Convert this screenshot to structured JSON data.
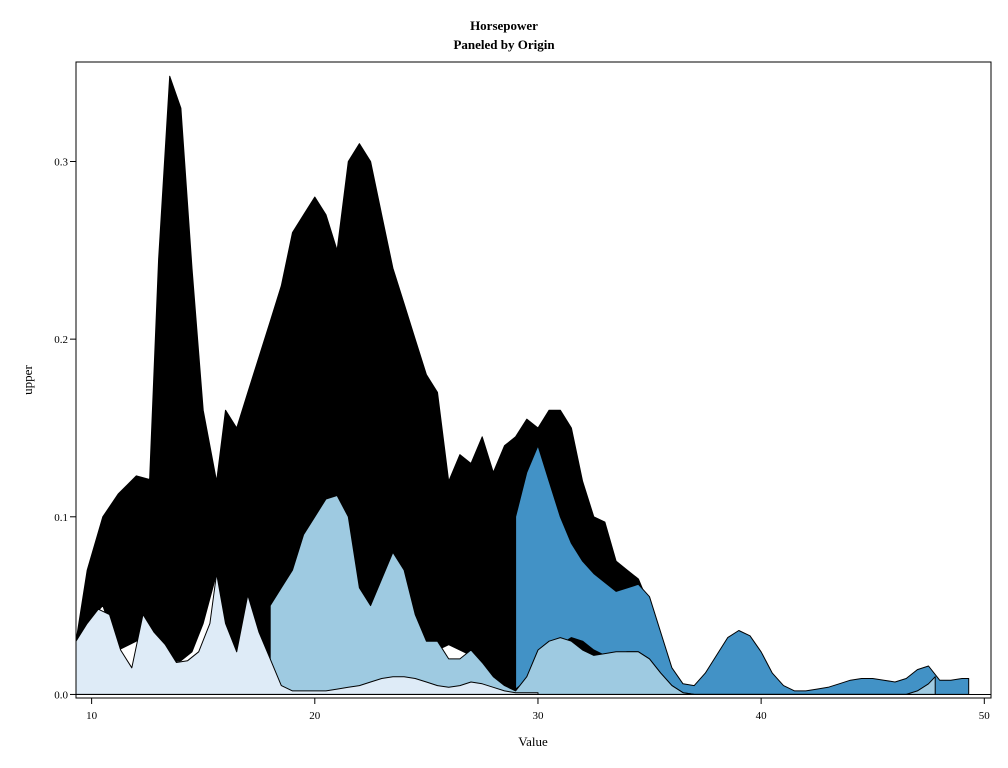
{
  "chart_data": {
    "type": "area",
    "title": "Horsepower",
    "subtitle": "Paneled by Origin",
    "xlabel": "Value",
    "ylabel": "upper",
    "xlim": [
      9.3,
      50.3
    ],
    "ylim": [
      -0.002,
      0.356
    ],
    "xticks": [
      10,
      20,
      30,
      40,
      50
    ],
    "yticks": [
      0.0,
      0.1,
      0.2,
      0.3
    ],
    "ytick_labels": [
      "0.0",
      "0.1",
      "0.2",
      "0.3"
    ],
    "grid": false,
    "legend": "none",
    "series": [
      {
        "color": "#000000",
        "x": [
          9.3,
          9.8,
          10.5,
          11.2,
          12.0,
          12.6,
          13.0,
          13.5,
          14.0,
          14.5,
          15.0,
          15.6,
          16.0,
          16.5,
          17.0,
          17.5,
          18.0,
          18.5,
          19.0,
          19.5,
          20.0,
          20.5,
          21.0,
          21.5,
          22.0,
          22.5,
          23.0,
          23.5,
          24.0,
          24.5,
          25.0,
          25.5,
          26.0,
          26.5,
          27.0,
          27.5,
          28.0,
          28.5,
          29.0,
          29.5,
          30.0,
          30.5,
          31.0,
          31.5,
          32.0,
          32.5,
          33.0,
          33.5,
          34.0,
          34.5,
          35.0
        ],
        "upper": [
          0.03,
          0.07,
          0.1,
          0.113,
          0.123,
          0.121,
          0.245,
          0.348,
          0.33,
          0.24,
          0.16,
          0.12,
          0.16,
          0.15,
          0.17,
          0.19,
          0.21,
          0.23,
          0.26,
          0.27,
          0.28,
          0.27,
          0.25,
          0.3,
          0.31,
          0.3,
          0.27,
          0.24,
          0.22,
          0.2,
          0.18,
          0.17,
          0.12,
          0.135,
          0.13,
          0.145,
          0.125,
          0.14,
          0.145,
          0.155,
          0.15,
          0.16,
          0.16,
          0.15,
          0.12,
          0.1,
          0.097,
          0.075,
          0.07,
          0.065,
          0.05
        ],
        "lower": [
          0.03,
          0.04,
          0.05,
          0.025,
          0.03,
          0.04,
          0.028,
          0.018,
          0.019,
          0.024,
          0.04,
          0.068,
          0.04,
          0.024,
          0.03,
          0.035,
          0.02,
          0.005,
          0.002,
          0.002,
          0.002,
          0.002,
          0.005,
          0.008,
          0.01,
          0.012,
          0.014,
          0.018,
          0.02,
          0.018,
          0.03,
          0.025,
          0.028,
          0.025,
          0.022,
          0.015,
          0.008,
          0.004,
          0.002,
          0.01,
          0.025,
          0.03,
          0.032,
          0.03,
          0.025,
          0.022,
          0.023,
          0.024,
          0.024,
          0.024,
          0.024
        ]
      },
      {
        "color": "#4292c6",
        "x": [
          29.0,
          29.5,
          30.0,
          30.5,
          31.0,
          31.5,
          32.0,
          32.5,
          33.0,
          33.5,
          34.0,
          34.5,
          35.0,
          35.5,
          36.0,
          36.5,
          37.0,
          37.5,
          38.0,
          38.5,
          39.0,
          39.5,
          40.0,
          40.5,
          41.0,
          41.5,
          42.0,
          42.5,
          43.0,
          43.5,
          44.0,
          44.5,
          45.0,
          45.5,
          46.0,
          46.5,
          47.0,
          47.5,
          48.0,
          48.5,
          49.0,
          49.3
        ],
        "upper": [
          0.1,
          0.125,
          0.14,
          0.12,
          0.1,
          0.085,
          0.075,
          0.068,
          0.063,
          0.058,
          0.06,
          0.062,
          0.055,
          0.035,
          0.015,
          0.006,
          0.005,
          0.012,
          0.022,
          0.032,
          0.036,
          0.033,
          0.024,
          0.012,
          0.005,
          0.002,
          0.002,
          0.003,
          0.004,
          0.006,
          0.008,
          0.009,
          0.009,
          0.008,
          0.007,
          0.009,
          0.014,
          0.016,
          0.008,
          0.008,
          0.009,
          0.009
        ],
        "lower": [
          0.003,
          0.008,
          0.015,
          0.022,
          0.028,
          0.032,
          0.03,
          0.025,
          0.022,
          0.023,
          0.024,
          0.024,
          0.02,
          0.012,
          0.005,
          0.001,
          0.0,
          0.0,
          0.0,
          0.0,
          0.0,
          0.0,
          0.0,
          0.0,
          0.0,
          0.0,
          0.0,
          0.0,
          0.0,
          0.0,
          0.0,
          0.0,
          0.0,
          0.0,
          0.0,
          0.0,
          0.0,
          0.0,
          0.0,
          0.0,
          0.0,
          0.0
        ]
      },
      {
        "color": "#9ecae1",
        "x": [
          18.0,
          18.5,
          19.0,
          19.5,
          20.0,
          20.5,
          21.0,
          21.5,
          22.0,
          22.5,
          23.0,
          23.5,
          24.0,
          24.5,
          25.0,
          25.5,
          26.0,
          26.5,
          27.0,
          27.5,
          28.0,
          28.5,
          29.0,
          29.5,
          30.0,
          30.5,
          31.0,
          31.5,
          32.0,
          32.5,
          33.0,
          33.5,
          34.0,
          34.5,
          35.0,
          35.5,
          36.0,
          36.5,
          37.0,
          37.5,
          38.0,
          38.5,
          39.0,
          39.5,
          40.0,
          40.5,
          41.0,
          41.5,
          42.0,
          42.5,
          43.0,
          43.5,
          44.0,
          44.5,
          45.0,
          45.5,
          46.0,
          46.5,
          47.0,
          47.5,
          47.8
        ],
        "upper": [
          0.05,
          0.06,
          0.07,
          0.09,
          0.1,
          0.11,
          0.112,
          0.1,
          0.06,
          0.05,
          0.065,
          0.08,
          0.07,
          0.045,
          0.03,
          0.03,
          0.02,
          0.02,
          0.025,
          0.018,
          0.01,
          0.005,
          0.002,
          0.01,
          0.025,
          0.03,
          0.032,
          0.03,
          0.025,
          0.022,
          0.023,
          0.024,
          0.024,
          0.024,
          0.02,
          0.012,
          0.005,
          0.001,
          0.0,
          0.0,
          0.0,
          0.0,
          0.0,
          0.0,
          0.0,
          0.0,
          0.0,
          0.0,
          0.0,
          0.0,
          0.0,
          0.0,
          0.0,
          0.0,
          0.0,
          0.0,
          0.0,
          0.0,
          0.002,
          0.006,
          0.01
        ],
        "lower": [
          0.0,
          0.0,
          0.0,
          0.0,
          0.0,
          0.0,
          0.0,
          0.0,
          0.0,
          0.0,
          0.0,
          0.0,
          0.0,
          0.0,
          0.0,
          0.0,
          0.0,
          0.0,
          0.0,
          0.0,
          0.0,
          0.0,
          0.0,
          0.0,
          0.0,
          0.0,
          0.0,
          0.0,
          0.0,
          0.0,
          0.0,
          0.0,
          0.0,
          0.0,
          0.0,
          0.0,
          0.0,
          0.0,
          0.0,
          0.0,
          0.0,
          0.0,
          0.0,
          0.0,
          0.0,
          0.0,
          0.0,
          0.0,
          0.0,
          0.0,
          0.0,
          0.0,
          0.0,
          0.0,
          0.0,
          0.0,
          0.0,
          0.0,
          0.0,
          0.0,
          0.0
        ]
      },
      {
        "color": "#deebf7",
        "x": [
          9.3,
          9.8,
          10.3,
          10.8,
          11.3,
          11.8,
          12.3,
          12.8,
          13.3,
          13.8,
          14.3,
          14.8,
          15.3,
          15.6,
          16.0,
          16.5,
          17.0,
          17.5,
          18.0,
          18.5,
          19.0,
          19.5,
          20.0,
          20.5,
          21.0,
          21.5,
          22.0,
          22.5,
          23.0,
          23.5,
          24.0,
          24.5,
          25.0,
          25.5,
          26.0,
          26.5,
          27.0,
          27.5,
          28.0,
          28.5,
          29.0,
          29.5,
          30.0
        ],
        "upper": [
          0.03,
          0.04,
          0.048,
          0.045,
          0.025,
          0.015,
          0.045,
          0.035,
          0.028,
          0.018,
          0.019,
          0.024,
          0.04,
          0.068,
          0.04,
          0.024,
          0.056,
          0.035,
          0.02,
          0.005,
          0.002,
          0.002,
          0.002,
          0.002,
          0.003,
          0.004,
          0.005,
          0.007,
          0.009,
          0.01,
          0.01,
          0.009,
          0.007,
          0.005,
          0.004,
          0.005,
          0.007,
          0.006,
          0.004,
          0.002,
          0.001,
          0.001,
          0.001
        ],
        "lower": [
          0.0,
          0.0,
          0.0,
          0.0,
          0.0,
          0.0,
          0.0,
          0.0,
          0.0,
          0.0,
          0.0,
          0.0,
          0.0,
          0.0,
          0.0,
          0.0,
          0.0,
          0.0,
          0.0,
          0.0,
          0.0,
          0.0,
          0.0,
          0.0,
          0.0,
          0.0,
          0.0,
          0.0,
          0.0,
          0.0,
          0.0,
          0.0,
          0.0,
          0.0,
          0.0,
          0.0,
          0.0,
          0.0,
          0.0,
          0.0,
          0.0,
          0.0,
          0.0
        ]
      }
    ]
  }
}
